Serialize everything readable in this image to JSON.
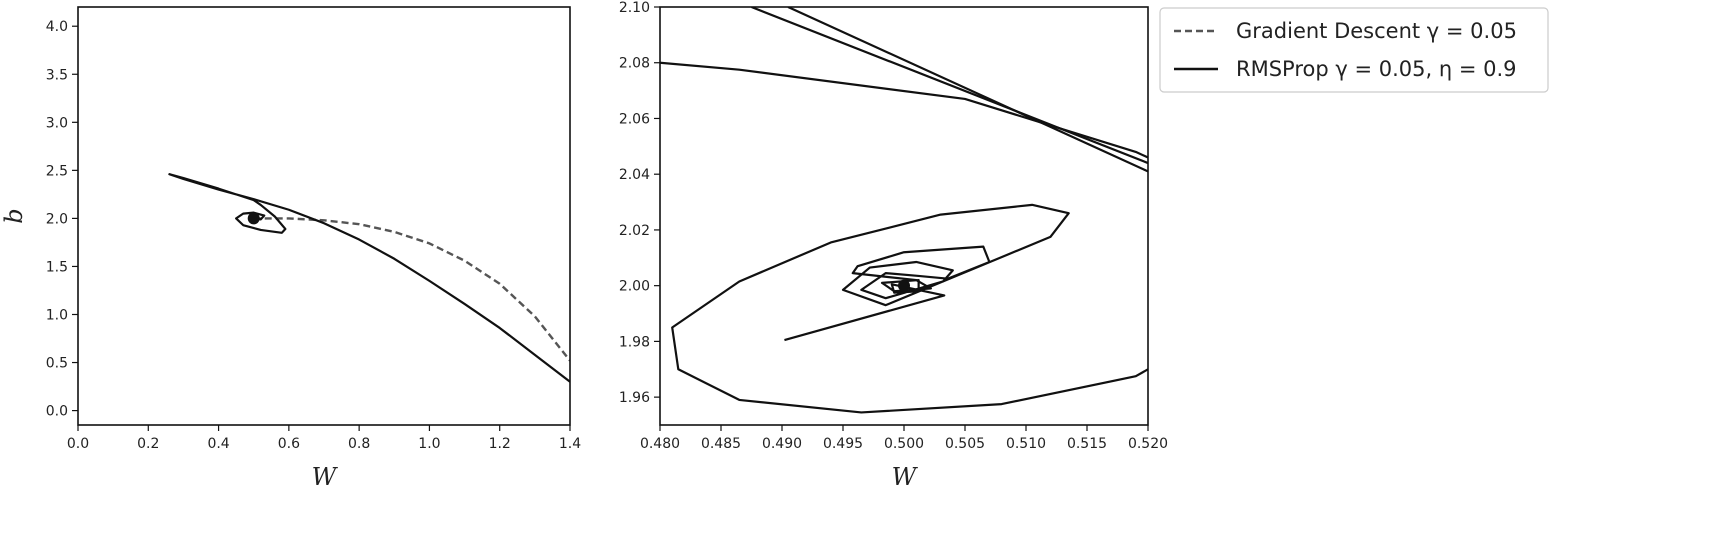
{
  "chart_data": [
    {
      "type": "line",
      "xlabel": "W",
      "ylabel": "b",
      "xlim": [
        0.0,
        1.4
      ],
      "ylim": [
        -0.15,
        4.2
      ],
      "xticks": [
        "0.0",
        "0.2",
        "0.4",
        "0.6",
        "0.8",
        "1.0",
        "1.2",
        "1.4"
      ],
      "yticks": [
        "0.0",
        "0.5",
        "1.0",
        "1.5",
        "2.0",
        "2.5",
        "3.0",
        "3.5",
        "4.0"
      ],
      "series": [
        {
          "name": "Gradient Descent γ = 0.05",
          "style": "dashed",
          "color": "#555555",
          "x": [
            0.5,
            0.55,
            0.6,
            0.7,
            0.8,
            0.9,
            1.0,
            1.1,
            1.2,
            1.3,
            1.4
          ],
          "y": [
            2.0,
            2.0,
            2.0,
            1.98,
            1.94,
            1.86,
            1.74,
            1.56,
            1.32,
            0.98,
            0.52
          ]
        },
        {
          "name": "RMSProp γ = 0.05, η = 0.9",
          "style": "solid",
          "color": "#111111",
          "x": [
            1.4,
            1.3,
            1.2,
            1.1,
            1.0,
            0.9,
            0.8,
            0.7,
            0.6,
            0.5,
            0.4,
            0.3,
            0.26,
            0.3,
            0.4,
            0.5,
            0.52,
            0.56,
            0.59,
            0.58,
            0.52,
            0.47,
            0.45,
            0.47,
            0.5,
            0.53,
            0.52,
            0.5
          ],
          "y": [
            0.3,
            0.58,
            0.86,
            1.11,
            1.35,
            1.58,
            1.78,
            1.95,
            2.09,
            2.2,
            2.3,
            2.41,
            2.46,
            2.42,
            2.31,
            2.19,
            2.14,
            2.02,
            1.89,
            1.85,
            1.88,
            1.93,
            2.0,
            2.05,
            2.06,
            2.03,
            1.99,
            2.0
          ]
        }
      ],
      "markers": [
        {
          "x": 0.5,
          "y": 2.0
        }
      ]
    },
    {
      "type": "line",
      "xlabel": "W",
      "ylabel": "",
      "xlim": [
        0.48,
        0.52
      ],
      "ylim": [
        1.95,
        2.1
      ],
      "xticks": [
        "0.480",
        "0.485",
        "0.490",
        "0.495",
        "0.500",
        "0.505",
        "0.510",
        "0.515",
        "0.520"
      ],
      "yticks": [
        "1.96",
        "1.98",
        "2.00",
        "2.02",
        "2.04",
        "2.06",
        "2.08",
        "2.10"
      ],
      "series": [
        {
          "name": "RMSProp γ = 0.05, η = 0.9",
          "style": "solid",
          "color": "#111111",
          "segments": [
            {
              "x": [
                0.4875,
                0.52
              ],
              "y": [
                2.1,
                2.044
              ]
            },
            {
              "x": [
                0.4905,
                0.52
              ],
              "y": [
                2.1,
                2.041
              ]
            },
            {
              "x": [
                0.48,
                0.4865,
                0.505,
                0.519,
                0.52
              ],
              "y": [
                2.08,
                2.0775,
                2.067,
                2.048,
                2.046
              ]
            },
            {
              "x": [
                0.52,
                0.519,
                0.508,
                0.4965,
                0.4865,
                0.4815,
                0.481,
                0.4865,
                0.494,
                0.503,
                0.5105,
                0.5135,
                0.512,
                0.4985,
                0.495,
                0.4972,
                0.501,
                0.504,
                0.5032,
                0.4985,
                0.4965,
                0.4985,
                0.5012,
                0.5036,
                0.507,
                0.5065,
                0.5,
                0.4962,
                0.4958,
                0.501,
                0.5022,
                0.4992,
                0.4982,
                0.5012,
                0.5012,
                0.4992,
                0.499,
                0.5033,
                0.4902
              ],
              "y": [
                1.97,
                1.9675,
                1.9575,
                1.9545,
                1.959,
                1.97,
                1.985,
                2.0015,
                2.0155,
                2.0255,
                2.029,
                2.026,
                2.0175,
                1.993,
                1.9985,
                2.0065,
                2.0085,
                2.0055,
                2.0015,
                1.9955,
                1.9985,
                2.0045,
                2.0035,
                2.0025,
                2.0085,
                2.014,
                2.012,
                2.007,
                2.0045,
                2.002,
                1.999,
                1.998,
                2.001,
                2.002,
                1.998,
                1.9975,
                2.0005,
                1.9965,
                1.9805
              ]
            }
          ]
        }
      ],
      "markers": [
        {
          "x": 0.5,
          "y": 2.0
        }
      ]
    }
  ],
  "legend": {
    "placement": "outside-right",
    "entries": [
      {
        "label": "Gradient Descent γ = 0.05",
        "style": "dashed",
        "color": "#555555"
      },
      {
        "label": "RMSProp γ = 0.05, η = 0.9",
        "style": "solid",
        "color": "#111111"
      }
    ]
  }
}
